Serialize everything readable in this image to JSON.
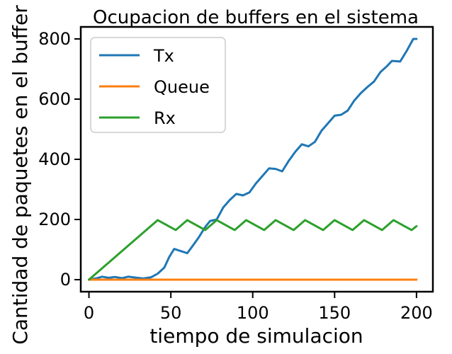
{
  "chart_data": {
    "type": "line",
    "title": "Ocupacion de buffers en el sistema",
    "xlabel": "tiempo de simulacion",
    "ylabel": "Cantidad de paquetes en el buffer",
    "xlim": [
      -5,
      210
    ],
    "ylim": [
      -40,
      840
    ],
    "xticks": [
      "0",
      "50",
      "100",
      "150",
      "200"
    ],
    "yticks": [
      "0",
      "200",
      "400",
      "600",
      "800"
    ],
    "grid": false,
    "legend_position": "top-left",
    "colors": {
      "Tx": "#1f77b4",
      "Queue": "#ff7f0e",
      "Rx": "#2ca02c"
    },
    "series": [
      {
        "name": "Tx",
        "color": "#1f77b4",
        "points": [
          [
            0,
            0
          ],
          [
            5,
            5
          ],
          [
            8,
            10
          ],
          [
            12,
            6
          ],
          [
            16,
            9
          ],
          [
            20,
            5
          ],
          [
            24,
            10
          ],
          [
            28,
            7
          ],
          [
            33,
            4
          ],
          [
            38,
            8
          ],
          [
            42,
            20
          ],
          [
            46,
            40
          ],
          [
            49,
            75
          ],
          [
            52,
            102
          ],
          [
            56,
            95
          ],
          [
            60,
            88
          ],
          [
            63,
            110
          ],
          [
            67,
            140
          ],
          [
            71,
            175
          ],
          [
            74,
            195
          ],
          [
            78,
            200
          ],
          [
            82,
            240
          ],
          [
            86,
            265
          ],
          [
            90,
            285
          ],
          [
            94,
            280
          ],
          [
            98,
            290
          ],
          [
            102,
            320
          ],
          [
            106,
            345
          ],
          [
            110,
            370
          ],
          [
            114,
            368
          ],
          [
            118,
            360
          ],
          [
            122,
            395
          ],
          [
            126,
            425
          ],
          [
            130,
            450
          ],
          [
            134,
            443
          ],
          [
            138,
            458
          ],
          [
            142,
            495
          ],
          [
            146,
            520
          ],
          [
            150,
            545
          ],
          [
            154,
            548
          ],
          [
            158,
            562
          ],
          [
            162,
            595
          ],
          [
            166,
            620
          ],
          [
            170,
            640
          ],
          [
            174,
            658
          ],
          [
            178,
            690
          ],
          [
            182,
            710
          ],
          [
            185,
            727
          ],
          [
            190,
            725
          ],
          [
            194,
            760
          ],
          [
            198,
            800
          ],
          [
            200,
            800
          ]
        ]
      },
      {
        "name": "Queue",
        "color": "#ff7f0e",
        "points": [
          [
            0,
            0
          ],
          [
            200,
            0
          ]
        ]
      },
      {
        "name": "Rx",
        "color": "#2ca02c",
        "points": [
          [
            0,
            0
          ],
          [
            42,
            198
          ],
          [
            53,
            165
          ],
          [
            60,
            198
          ],
          [
            71,
            165
          ],
          [
            78,
            198
          ],
          [
            89,
            165
          ],
          [
            96,
            198
          ],
          [
            107,
            165
          ],
          [
            114,
            198
          ],
          [
            125,
            165
          ],
          [
            132,
            198
          ],
          [
            143,
            165
          ],
          [
            150,
            198
          ],
          [
            161,
            165
          ],
          [
            168,
            198
          ],
          [
            179,
            165
          ],
          [
            186,
            198
          ],
          [
            197,
            165
          ],
          [
            200,
            178
          ]
        ]
      }
    ]
  }
}
